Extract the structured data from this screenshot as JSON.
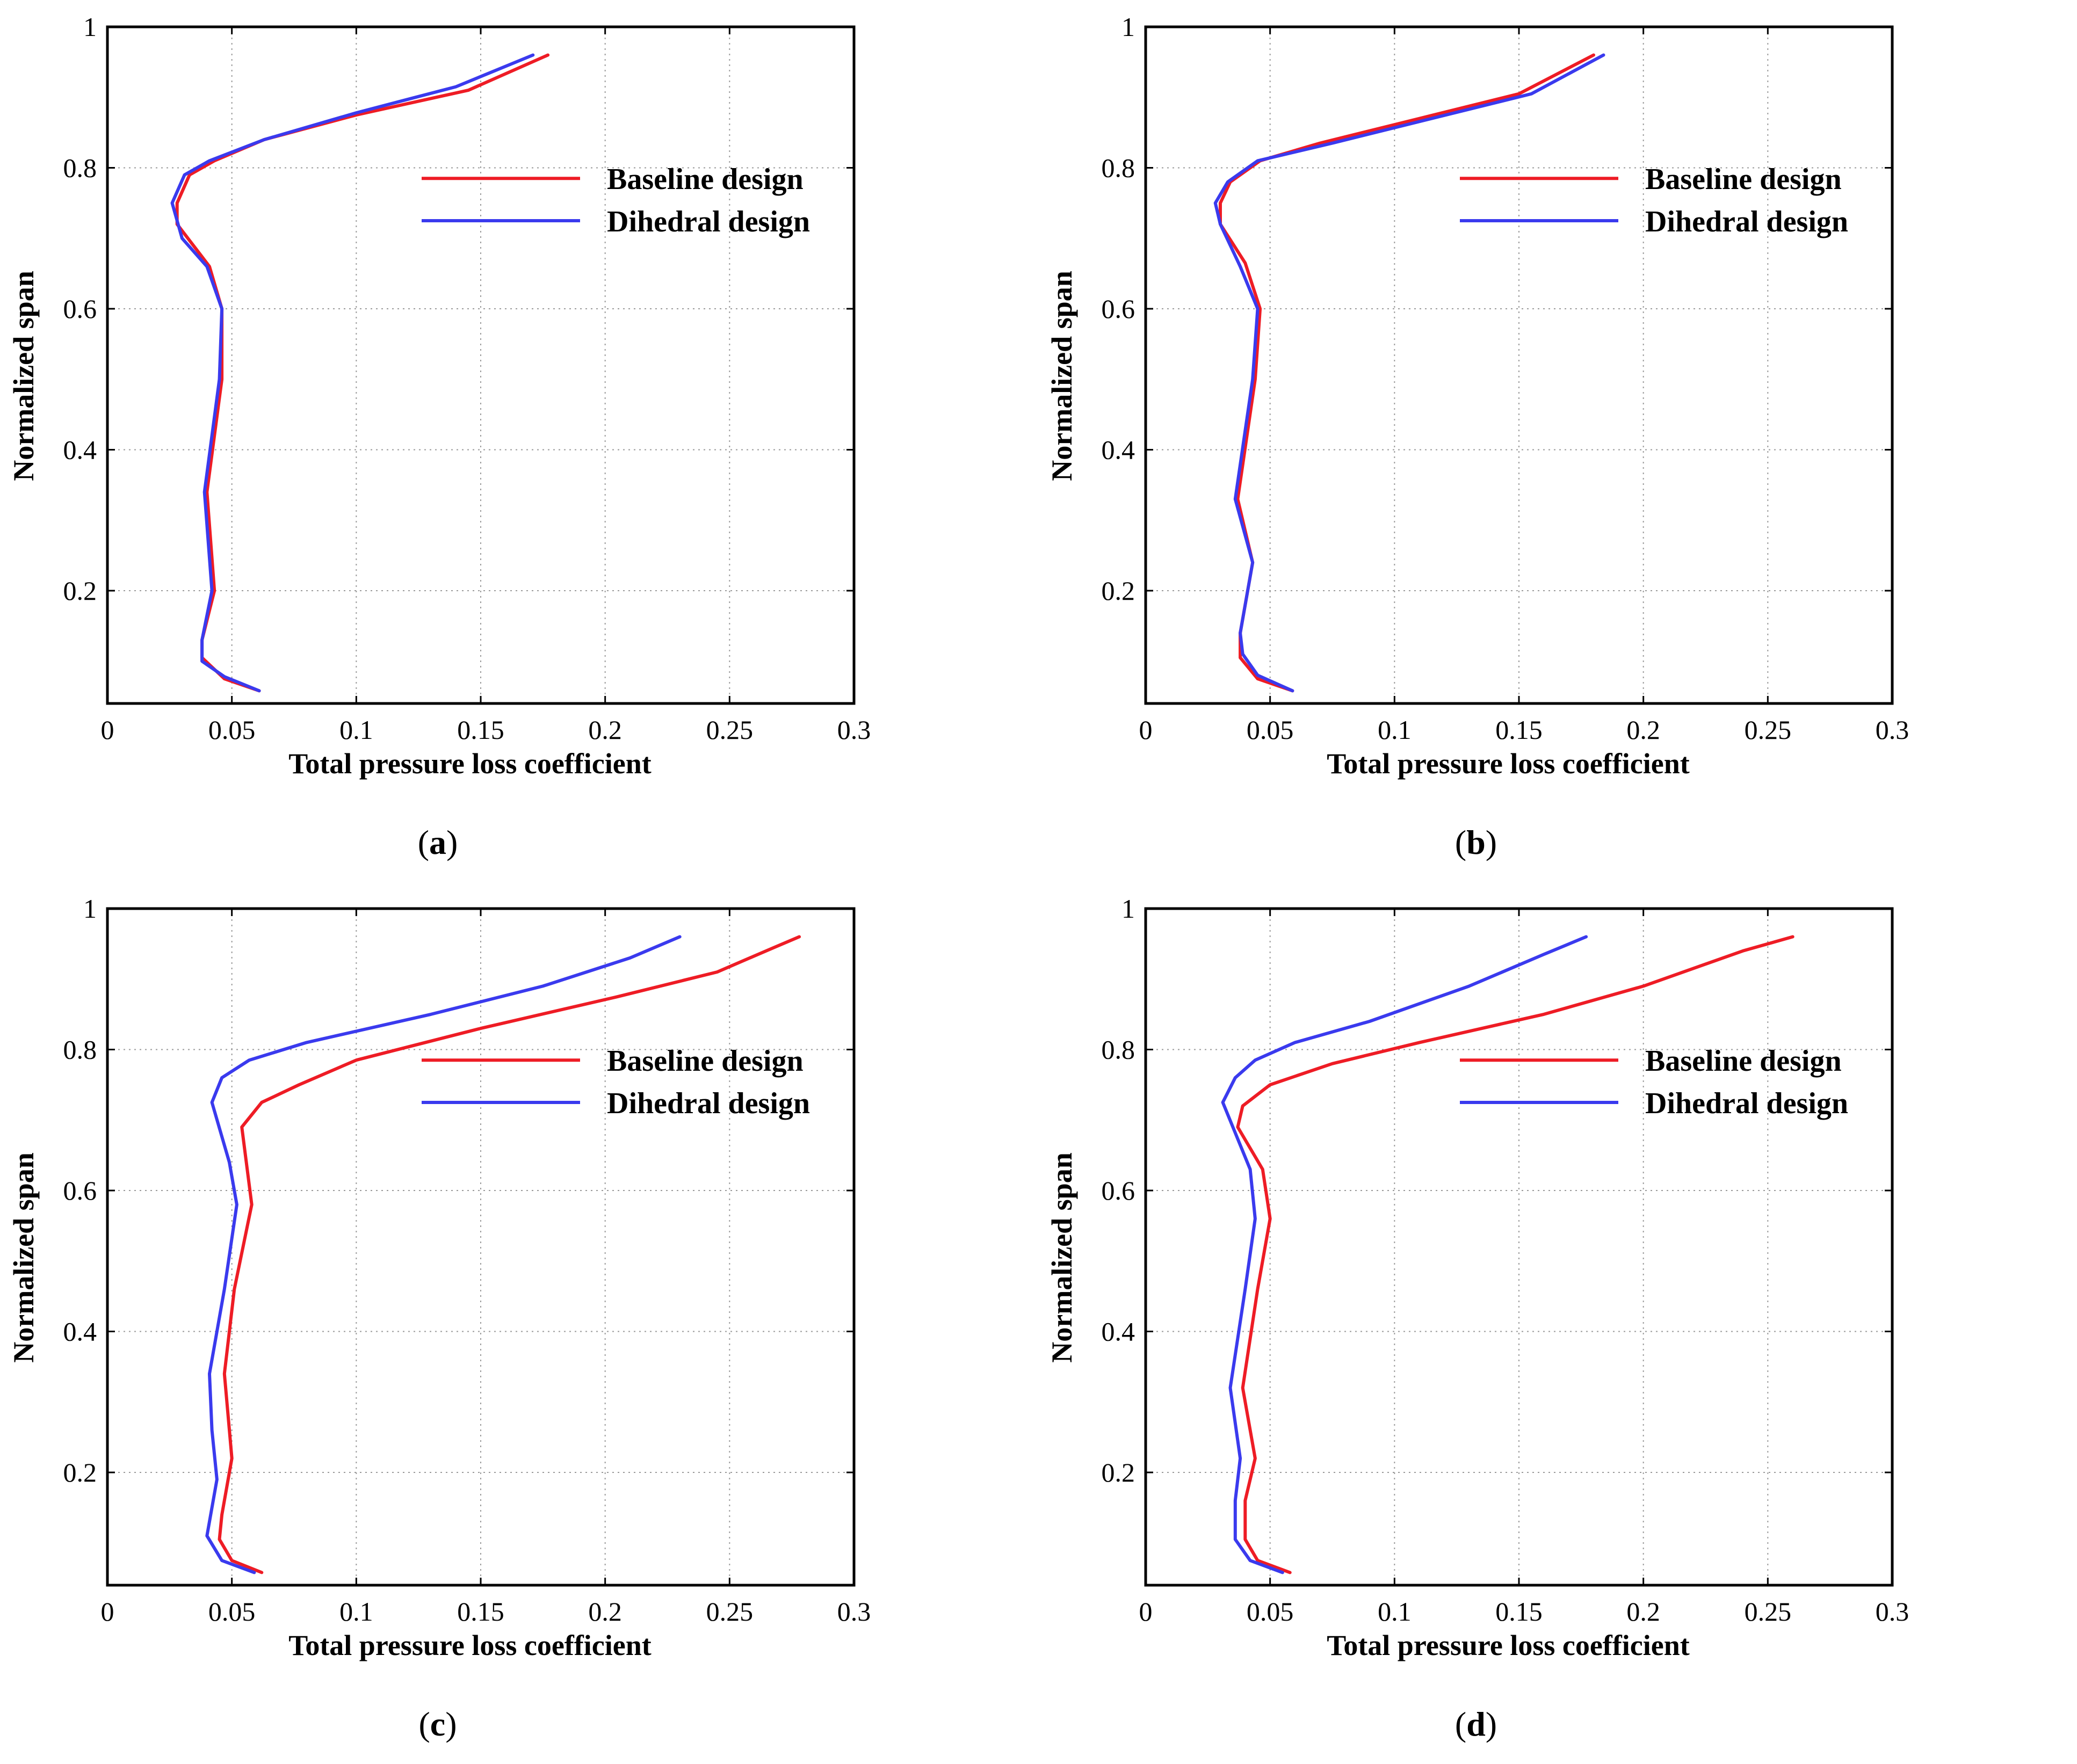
{
  "figure": {
    "colors": {
      "baseline": "#ee1c25",
      "dihedral": "#3a3aee"
    }
  },
  "chart_data": [
    {
      "type": "line",
      "caption_open": "(",
      "caption_letter": "a",
      "caption_close": ")",
      "xlabel": "Total pressure loss coefficient",
      "ylabel": "Normalized span",
      "xlim": [
        0,
        0.3
      ],
      "ylim": [
        0.04,
        1.0
      ],
      "xticks": [
        "0",
        "0.05",
        "0.1",
        "0.15",
        "0.2",
        "0.25",
        "0.3"
      ],
      "yticks": [
        "0.2",
        "0.4",
        "0.6",
        "0.8",
        "1"
      ],
      "legend": "top-right",
      "series": [
        {
          "name": "Baseline design",
          "color": "#ee1c25",
          "points": [
            [
              0.061,
              0.058
            ],
            [
              0.047,
              0.075
            ],
            [
              0.038,
              0.105
            ],
            [
              0.038,
              0.13
            ],
            [
              0.043,
              0.2
            ],
            [
              0.04,
              0.34
            ],
            [
              0.046,
              0.5
            ],
            [
              0.046,
              0.6
            ],
            [
              0.041,
              0.66
            ],
            [
              0.028,
              0.72
            ],
            [
              0.028,
              0.75
            ],
            [
              0.033,
              0.79
            ],
            [
              0.043,
              0.81
            ],
            [
              0.063,
              0.84
            ],
            [
              0.1,
              0.875
            ],
            [
              0.145,
              0.91
            ],
            [
              0.177,
              0.96
            ]
          ]
        },
        {
          "name": "Dihedral design",
          "color": "#3a3aee",
          "points": [
            [
              0.061,
              0.058
            ],
            [
              0.047,
              0.078
            ],
            [
              0.038,
              0.1
            ],
            [
              0.038,
              0.13
            ],
            [
              0.042,
              0.2
            ],
            [
              0.039,
              0.34
            ],
            [
              0.045,
              0.5
            ],
            [
              0.046,
              0.6
            ],
            [
              0.04,
              0.66
            ],
            [
              0.03,
              0.7
            ],
            [
              0.026,
              0.75
            ],
            [
              0.031,
              0.79
            ],
            [
              0.041,
              0.81
            ],
            [
              0.063,
              0.84
            ],
            [
              0.1,
              0.878
            ],
            [
              0.14,
              0.915
            ],
            [
              0.171,
              0.96
            ]
          ]
        }
      ]
    },
    {
      "type": "line",
      "caption_open": "(",
      "caption_letter": "b",
      "caption_close": ")",
      "xlabel": "Total pressure loss coefficient",
      "ylabel": "Normalized span",
      "xlim": [
        0,
        0.3
      ],
      "ylim": [
        0.04,
        1.0
      ],
      "xticks": [
        "0",
        "0.05",
        "0.1",
        "0.15",
        "0.2",
        "0.25",
        "0.3"
      ],
      "yticks": [
        "0.2",
        "0.4",
        "0.6",
        "0.8",
        "1"
      ],
      "legend": "top-right",
      "series": [
        {
          "name": "Baseline design",
          "color": "#ee1c25",
          "points": [
            [
              0.059,
              0.058
            ],
            [
              0.045,
              0.075
            ],
            [
              0.038,
              0.105
            ],
            [
              0.038,
              0.14
            ],
            [
              0.043,
              0.24
            ],
            [
              0.037,
              0.33
            ],
            [
              0.044,
              0.5
            ],
            [
              0.046,
              0.6
            ],
            [
              0.04,
              0.665
            ],
            [
              0.03,
              0.72
            ],
            [
              0.03,
              0.75
            ],
            [
              0.034,
              0.78
            ],
            [
              0.046,
              0.81
            ],
            [
              0.07,
              0.835
            ],
            [
              0.11,
              0.87
            ],
            [
              0.15,
              0.905
            ],
            [
              0.18,
              0.96
            ]
          ]
        },
        {
          "name": "Dihedral design",
          "color": "#3a3aee",
          "points": [
            [
              0.059,
              0.058
            ],
            [
              0.045,
              0.08
            ],
            [
              0.039,
              0.11
            ],
            [
              0.038,
              0.14
            ],
            [
              0.043,
              0.24
            ],
            [
              0.036,
              0.33
            ],
            [
              0.043,
              0.5
            ],
            [
              0.045,
              0.6
            ],
            [
              0.038,
              0.66
            ],
            [
              0.03,
              0.72
            ],
            [
              0.028,
              0.75
            ],
            [
              0.033,
              0.78
            ],
            [
              0.045,
              0.81
            ],
            [
              0.075,
              0.835
            ],
            [
              0.115,
              0.87
            ],
            [
              0.155,
              0.905
            ],
            [
              0.184,
              0.96
            ]
          ]
        }
      ]
    },
    {
      "type": "line",
      "caption_open": "(",
      "caption_letter": "c",
      "caption_close": ")",
      "xlabel": "Total pressure loss coefficient",
      "ylabel": "Normalized span",
      "xlim": [
        0,
        0.3
      ],
      "ylim": [
        0.04,
        1.0
      ],
      "xticks": [
        "0",
        "0.05",
        "0.1",
        "0.15",
        "0.2",
        "0.25",
        "0.3"
      ],
      "yticks": [
        "0.2",
        "0.4",
        "0.6",
        "0.8",
        "1"
      ],
      "legend": "top-right",
      "series": [
        {
          "name": "Baseline design",
          "color": "#ee1c25",
          "points": [
            [
              0.062,
              0.058
            ],
            [
              0.05,
              0.075
            ],
            [
              0.045,
              0.105
            ],
            [
              0.046,
              0.14
            ],
            [
              0.05,
              0.22
            ],
            [
              0.047,
              0.34
            ],
            [
              0.051,
              0.46
            ],
            [
              0.058,
              0.58
            ],
            [
              0.054,
              0.69
            ],
            [
              0.062,
              0.725
            ],
            [
              0.077,
              0.75
            ],
            [
              0.1,
              0.785
            ],
            [
              0.15,
              0.83
            ],
            [
              0.205,
              0.875
            ],
            [
              0.245,
              0.91
            ],
            [
              0.268,
              0.945
            ],
            [
              0.278,
              0.96
            ]
          ]
        },
        {
          "name": "Dihedral design",
          "color": "#3a3aee",
          "points": [
            [
              0.059,
              0.058
            ],
            [
              0.046,
              0.075
            ],
            [
              0.04,
              0.11
            ],
            [
              0.044,
              0.19
            ],
            [
              0.042,
              0.26
            ],
            [
              0.041,
              0.34
            ],
            [
              0.047,
              0.46
            ],
            [
              0.052,
              0.58
            ],
            [
              0.049,
              0.64
            ],
            [
              0.042,
              0.725
            ],
            [
              0.046,
              0.76
            ],
            [
              0.057,
              0.785
            ],
            [
              0.08,
              0.81
            ],
            [
              0.13,
              0.85
            ],
            [
              0.175,
              0.89
            ],
            [
              0.21,
              0.93
            ],
            [
              0.23,
              0.96
            ]
          ]
        }
      ]
    },
    {
      "type": "line",
      "caption_open": "(",
      "caption_letter": "d",
      "caption_close": ")",
      "xlabel": "Total pressure loss coefficient",
      "ylabel": "Normalized span",
      "xlim": [
        0,
        0.3
      ],
      "ylim": [
        0.04,
        1.0
      ],
      "xticks": [
        "0",
        "0.05",
        "0.1",
        "0.15",
        "0.2",
        "0.25",
        "0.3"
      ],
      "yticks": [
        "0.2",
        "0.4",
        "0.6",
        "0.8",
        "1"
      ],
      "legend": "top-right",
      "series": [
        {
          "name": "Baseline design",
          "color": "#ee1c25",
          "points": [
            [
              0.058,
              0.058
            ],
            [
              0.045,
              0.075
            ],
            [
              0.04,
              0.105
            ],
            [
              0.04,
              0.16
            ],
            [
              0.044,
              0.22
            ],
            [
              0.039,
              0.32
            ],
            [
              0.045,
              0.46
            ],
            [
              0.05,
              0.56
            ],
            [
              0.047,
              0.63
            ],
            [
              0.037,
              0.69
            ],
            [
              0.039,
              0.72
            ],
            [
              0.05,
              0.75
            ],
            [
              0.075,
              0.78
            ],
            [
              0.11,
              0.81
            ],
            [
              0.16,
              0.85
            ],
            [
              0.2,
              0.89
            ],
            [
              0.24,
              0.94
            ],
            [
              0.26,
              0.96
            ]
          ]
        },
        {
          "name": "Dihedral design",
          "color": "#3a3aee",
          "points": [
            [
              0.055,
              0.058
            ],
            [
              0.042,
              0.075
            ],
            [
              0.036,
              0.105
            ],
            [
              0.036,
              0.16
            ],
            [
              0.038,
              0.22
            ],
            [
              0.034,
              0.32
            ],
            [
              0.04,
              0.46
            ],
            [
              0.044,
              0.56
            ],
            [
              0.042,
              0.63
            ],
            [
              0.031,
              0.725
            ],
            [
              0.036,
              0.76
            ],
            [
              0.044,
              0.785
            ],
            [
              0.06,
              0.81
            ],
            [
              0.09,
              0.84
            ],
            [
              0.13,
              0.89
            ],
            [
              0.16,
              0.935
            ],
            [
              0.177,
              0.96
            ]
          ]
        }
      ]
    }
  ]
}
